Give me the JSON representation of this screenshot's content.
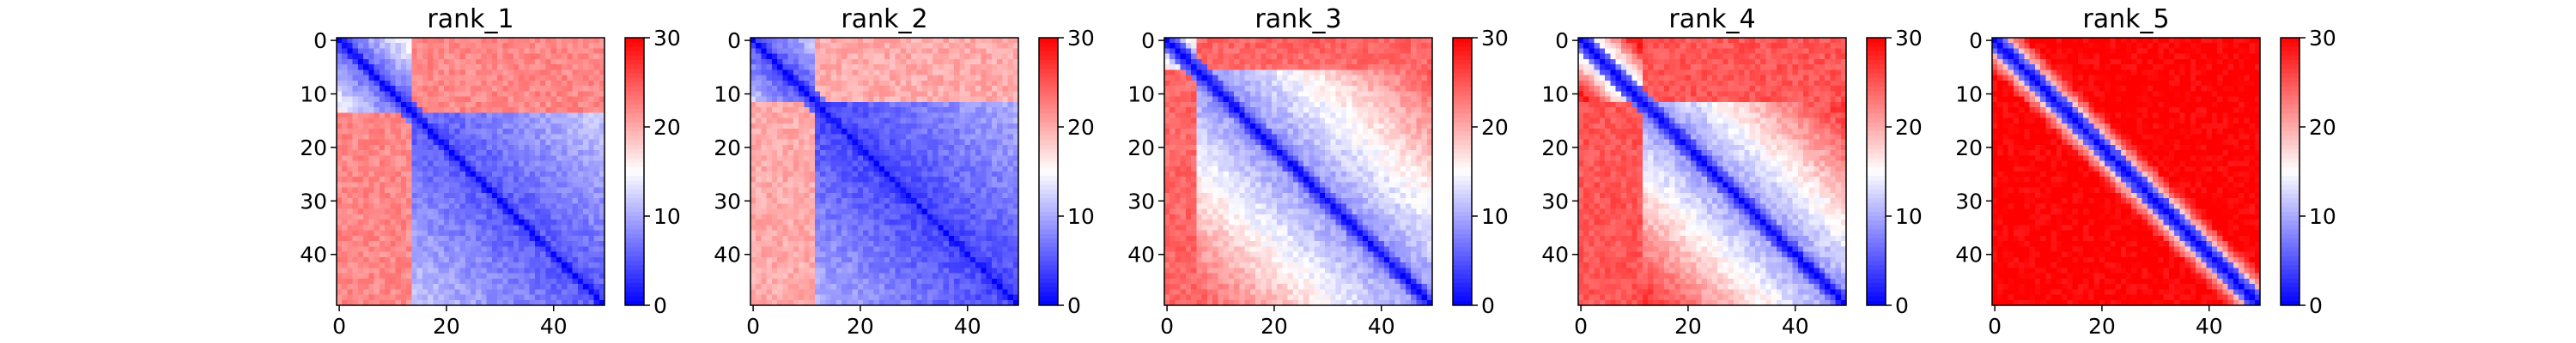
{
  "figure": {
    "background": "#ffffff"
  },
  "colormap": {
    "name": "bwr",
    "low": "#0000ff",
    "mid": "#ffffff",
    "high": "#ff0000"
  },
  "chart_data": [
    {
      "type": "heatmap",
      "title": "rank_1",
      "n": 50,
      "x_ticks": [
        "0",
        "20",
        "40"
      ],
      "y_ticks": [
        "0",
        "10",
        "20",
        "30",
        "40"
      ],
      "colorbar": {
        "range": [
          0,
          30
        ],
        "ticks": [
          "0",
          "10",
          "20",
          "30"
        ]
      },
      "pattern": {
        "diagonal_value": 0,
        "low_block_end": 14,
        "low_block_value": 5,
        "off_value": 27,
        "cross_value": 22,
        "gradient": 0.55
      }
    },
    {
      "type": "heatmap",
      "title": "rank_2",
      "n": 50,
      "x_ticks": [
        "0",
        "20",
        "40"
      ],
      "y_ticks": [
        "0",
        "10",
        "20",
        "30",
        "40"
      ],
      "colorbar": {
        "range": [
          0,
          30
        ],
        "ticks": [
          "0",
          "10",
          "20",
          "30"
        ]
      },
      "pattern": {
        "diagonal_value": 0,
        "low_block_end": 12,
        "low_block_value": 4,
        "off_value": 26,
        "cross_value": 20,
        "gradient": 0.5
      }
    },
    {
      "type": "heatmap",
      "title": "rank_3",
      "n": 50,
      "x_ticks": [
        "0",
        "20",
        "40"
      ],
      "y_ticks": [
        "0",
        "10",
        "20",
        "30",
        "40"
      ],
      "colorbar": {
        "range": [
          0,
          30
        ],
        "ticks": [
          "0",
          "10",
          "20",
          "30"
        ]
      },
      "pattern": {
        "diagonal_value": 0,
        "low_block_end": 6,
        "low_block_value": 8,
        "off_value": 29,
        "cross_value": 24,
        "gradient": 1.1
      }
    },
    {
      "type": "heatmap",
      "title": "rank_4",
      "n": 50,
      "x_ticks": [
        "0",
        "20",
        "40"
      ],
      "y_ticks": [
        "0",
        "10",
        "20",
        "30",
        "40"
      ],
      "colorbar": {
        "range": [
          0,
          30
        ],
        "ticks": [
          "0",
          "10",
          "20",
          "30"
        ]
      },
      "pattern": {
        "diagonal_value": 0,
        "low_block_end": 12,
        "low_block_value": 8,
        "off_value": 29,
        "cross_value": 25,
        "gradient": 1.5
      }
    },
    {
      "type": "heatmap",
      "title": "rank_5",
      "n": 50,
      "x_ticks": [
        "0",
        "20",
        "40"
      ],
      "y_ticks": [
        "0",
        "10",
        "20",
        "30",
        "40"
      ],
      "colorbar": {
        "range": [
          0,
          30
        ],
        "ticks": [
          "0",
          "10",
          "20",
          "30"
        ]
      },
      "pattern": {
        "diagonal_value": 0,
        "low_block_end": 0,
        "low_block_value": 10,
        "off_value": 30,
        "cross_value": 28,
        "gradient": 2.2
      }
    }
  ]
}
